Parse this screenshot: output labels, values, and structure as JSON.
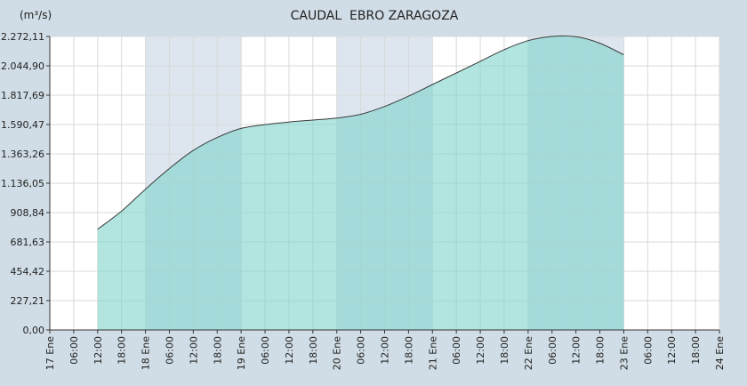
{
  "chart_data": {
    "type": "area",
    "title": "CAUDAL  EBRO ZARAGOZA",
    "unit_label": "(m³/s)",
    "xlabel": "",
    "ylabel": "(m³/s)",
    "ylim": [
      0,
      2272.11
    ],
    "y_ticks": [
      "0,00",
      "227,21",
      "454,42",
      "681,63",
      "908,84",
      "1.136,05",
      "1.363,26",
      "1.590,47",
      "1.817,69",
      "2.044,90",
      "2.272,11"
    ],
    "x_range_hours": [
      0,
      168
    ],
    "x_ticks": [
      "17 Ene",
      "06:00",
      "12:00",
      "18:00",
      "18 Ene",
      "06:00",
      "12:00",
      "18:00",
      "19 Ene",
      "06:00",
      "12:00",
      "18:00",
      "20 Ene",
      "06:00",
      "12:00",
      "18:00",
      "21 Ene",
      "06:00",
      "12:00",
      "18:00",
      "22 Ene",
      "06:00",
      "12:00",
      "18:00",
      "23 Ene",
      "06:00",
      "12:00",
      "18:00",
      "24 Ene"
    ],
    "shaded_day_bands": [
      [
        "18 Ene",
        "19 Ene"
      ],
      [
        "20 Ene",
        "21 Ene"
      ],
      [
        "22 Ene",
        "23 Ene"
      ]
    ],
    "grid": true,
    "colors": {
      "fill": "#7fd4cc",
      "line": "#3a3a3a",
      "band": "#dde6ef"
    },
    "series": [
      {
        "x": [
          "17 Ene 12:00",
          "17 Ene 18:00",
          "18 Ene 00:00",
          "18 Ene 06:00",
          "18 Ene 12:00",
          "18 Ene 18:00",
          "19 Ene 00:00",
          "19 Ene 06:00",
          "19 Ene 12:00",
          "19 Ene 18:00",
          "20 Ene 00:00",
          "20 Ene 06:00",
          "20 Ene 12:00",
          "20 Ene 18:00",
          "21 Ene 00:00",
          "21 Ene 06:00",
          "21 Ene 12:00",
          "21 Ene 18:00",
          "22 Ene 00:00",
          "22 Ene 06:00",
          "22 Ene 12:00",
          "22 Ene 18:00",
          "23 Ene 00:00"
        ],
        "values": [
          780,
          920,
          1090,
          1250,
          1390,
          1490,
          1560,
          1590,
          1610,
          1625,
          1640,
          1670,
          1730,
          1810,
          1900,
          1990,
          2080,
          2170,
          2240,
          2272,
          2270,
          2220,
          2130
        ]
      }
    ]
  }
}
